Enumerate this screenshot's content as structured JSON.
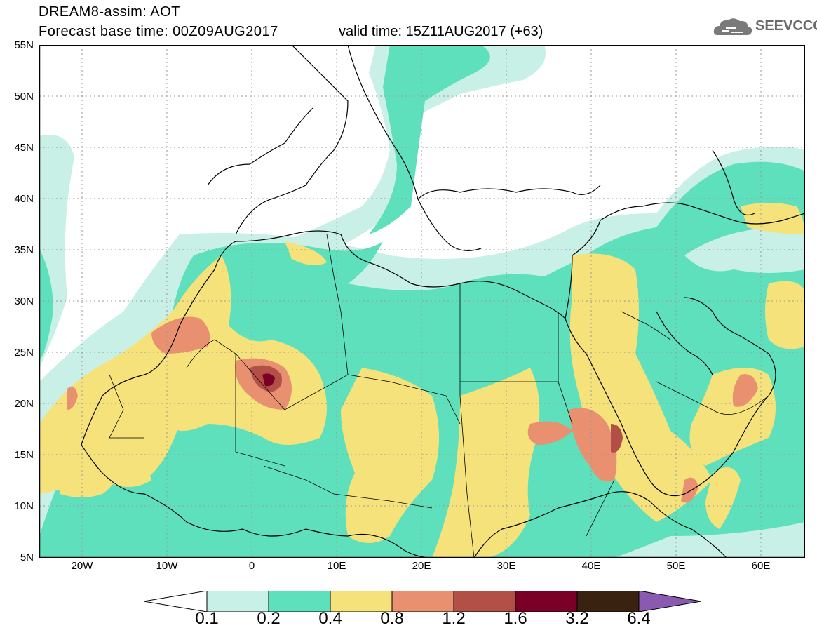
{
  "header": {
    "title_line1": "DREAM8-assim: AOT",
    "title_line2": "Forecast base time: 00Z09AUG2017",
    "valid_time": "valid time: 15Z11AUG2017 (+63)",
    "logo_text": "SEEVCCC"
  },
  "map": {
    "lat_labels": [
      "55N",
      "50N",
      "45N",
      "40N",
      "35N",
      "30N",
      "25N",
      "20N",
      "15N",
      "10N",
      "5N"
    ],
    "lon_labels": [
      "20W",
      "10W",
      "0",
      "10E",
      "20E",
      "30E",
      "40E",
      "50E",
      "60E"
    ],
    "colors": {
      "land_outline": "#000000",
      "grid": "#9a9a9a"
    }
  },
  "legend": {
    "levels": [
      "0.1",
      "0.2",
      "0.4",
      "0.8",
      "1.2",
      "1.6",
      "3.2",
      "6.4"
    ],
    "colors": [
      "#ffffff",
      "#c8f0e6",
      "#5ee0bc",
      "#f5e27a",
      "#e89070",
      "#b25048",
      "#7a0028",
      "#3a2210",
      "#8a5ab0"
    ]
  }
}
